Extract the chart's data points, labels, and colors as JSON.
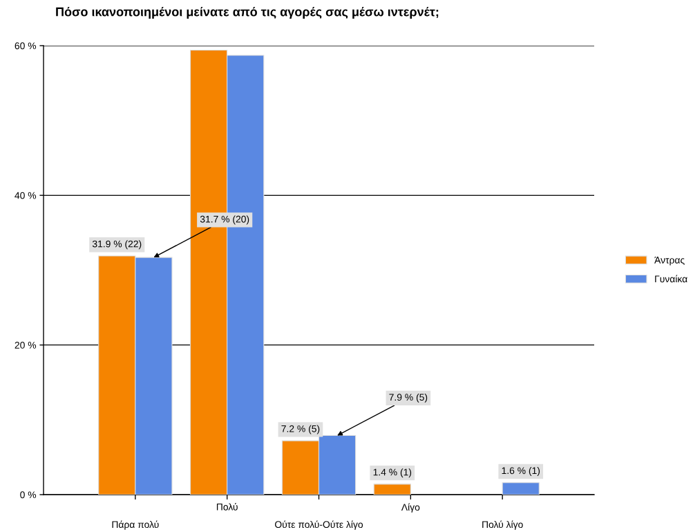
{
  "chart_data": {
    "type": "bar",
    "title": "Πόσο ικανοποιημένοι μείνατε από τις αγορές σας μέσω ιντερνέτ;",
    "categories": [
      "Πάρα πολύ",
      "Πολύ",
      "Ούτε πολύ-Ούτε λίγο",
      "Λίγο",
      "Πολύ λίγο"
    ],
    "series": [
      {
        "name": "Άντρας",
        "color": "#f58400",
        "values": [
          31.9,
          59.4,
          7.2,
          1.4,
          null
        ],
        "value_labels": [
          "31.9 % (22)",
          null,
          "7.2 % (5)",
          "1.4 % (1)",
          null
        ]
      },
      {
        "name": "Γυναίκα",
        "color": "#5a88e2",
        "values": [
          31.7,
          58.7,
          7.9,
          null,
          1.6
        ],
        "value_labels": [
          "31.7 % (20)",
          null,
          "7.9 % (5)",
          null,
          "1.6 % (1)"
        ]
      }
    ],
    "ylim": [
      0,
      60
    ],
    "yticks": [
      {
        "value": 0,
        "label": "0 %"
      },
      {
        "value": 20,
        "label": "20 %"
      },
      {
        "value": 40,
        "label": "40 %"
      },
      {
        "value": 60,
        "label": "60 %"
      }
    ],
    "grid": "y",
    "legend": "right"
  }
}
